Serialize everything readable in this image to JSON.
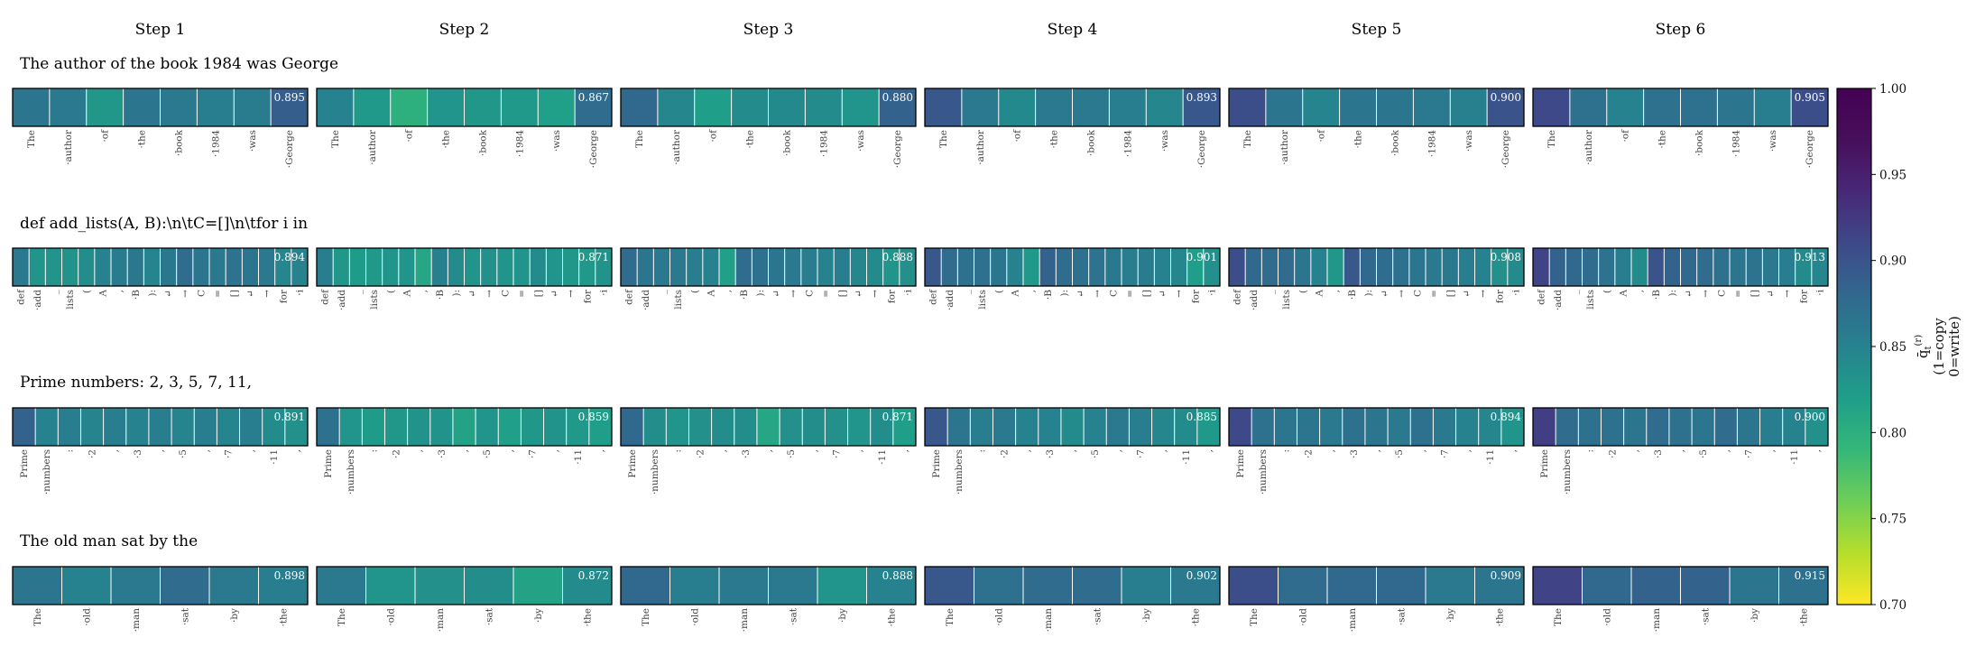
{
  "chart_data": {
    "type": "heatmap",
    "steps": [
      "Step 1",
      "Step 2",
      "Step 3",
      "Step 4",
      "Step 5",
      "Step 6"
    ],
    "colorbar": {
      "label_line1": "q̄",
      "label_sub": "t",
      "label_sup": "(r)",
      "label_line2": "(1=copy",
      "label_line3": "0=write)",
      "vmin": 0.7,
      "vmax": 1.0,
      "ticks": [
        "0.70",
        "0.75",
        "0.80",
        "0.85",
        "0.90",
        "0.95",
        "1.00"
      ],
      "colormap": "viridis_r"
    },
    "prompts": [
      {
        "title": "The author of the book 1984 was George",
        "tokens": [
          "The",
          "·author",
          "·of",
          "·the",
          "·book",
          "·1984",
          "·was",
          "·George"
        ],
        "labels": [
          "0.895",
          "0.867",
          "0.880",
          "0.893",
          "0.900",
          "0.905"
        ],
        "values": [
          [
            0.895,
            0.89,
            0.858,
            0.895,
            0.89,
            0.885,
            0.888,
            0.92
          ],
          [
            0.88,
            0.855,
            0.83,
            0.86,
            0.858,
            0.855,
            0.848,
            0.905
          ],
          [
            0.91,
            0.875,
            0.85,
            0.87,
            0.872,
            0.87,
            0.86,
            0.915
          ],
          [
            0.925,
            0.89,
            0.872,
            0.89,
            0.89,
            0.885,
            0.875,
            0.925
          ],
          [
            0.935,
            0.895,
            0.878,
            0.895,
            0.895,
            0.89,
            0.882,
            0.93
          ],
          [
            0.94,
            0.9,
            0.88,
            0.9,
            0.9,
            0.895,
            0.885,
            0.935
          ]
        ]
      },
      {
        "title": "def add_lists(A, B):\\n\\tC=[]\\n\\tfor i in",
        "tokens": [
          "def",
          "·add",
          "_",
          "lists",
          "(",
          "A",
          ",",
          "·B",
          "):",
          "↵",
          "→",
          "C",
          "=",
          "[]",
          "↵",
          "→",
          "for",
          "·i"
        ],
        "labels": [
          "0.894",
          "0.871",
          "0.888",
          "0.901",
          "0.908",
          "0.913"
        ],
        "values": [
          [
            0.89,
            0.86,
            0.86,
            0.862,
            0.868,
            0.88,
            0.888,
            0.893,
            0.878,
            0.892,
            0.905,
            0.895,
            0.89,
            0.898,
            0.895,
            0.89,
            0.875,
            0.88
          ],
          [
            0.885,
            0.858,
            0.852,
            0.855,
            0.86,
            0.86,
            0.84,
            0.882,
            0.87,
            0.86,
            0.865,
            0.86,
            0.86,
            0.87,
            0.86,
            0.858,
            0.855,
            0.862
          ],
          [
            0.905,
            0.895,
            0.89,
            0.89,
            0.885,
            0.88,
            0.848,
            0.905,
            0.9,
            0.895,
            0.89,
            0.885,
            0.88,
            0.885,
            0.875,
            0.87,
            0.86,
            0.865
          ],
          [
            0.925,
            0.905,
            0.9,
            0.9,
            0.895,
            0.88,
            0.855,
            0.915,
            0.905,
            0.9,
            0.898,
            0.892,
            0.885,
            0.888,
            0.88,
            0.875,
            0.85,
            0.865
          ],
          [
            0.935,
            0.91,
            0.905,
            0.905,
            0.895,
            0.88,
            0.858,
            0.925,
            0.91,
            0.905,
            0.9,
            0.895,
            0.89,
            0.892,
            0.885,
            0.88,
            0.865,
            0.87
          ],
          [
            0.945,
            0.915,
            0.91,
            0.905,
            0.898,
            0.885,
            0.87,
            0.93,
            0.915,
            0.91,
            0.905,
            0.9,
            0.895,
            0.898,
            0.89,
            0.885,
            0.87,
            0.875
          ]
        ]
      },
      {
        "title": "Prime numbers: 2, 3, 5, 7, 11,",
        "tokens": [
          "Prime",
          "·numbers",
          ":",
          "·2",
          ",",
          "·3",
          ",",
          "·5",
          ",",
          "·7",
          ",",
          "·11",
          ","
        ],
        "labels": [
          "0.891",
          "0.859",
          "0.871",
          "0.885",
          "0.894",
          "0.900"
        ],
        "values": [
          [
            0.915,
            0.88,
            0.885,
            0.878,
            0.885,
            0.88,
            0.885,
            0.878,
            0.885,
            0.878,
            0.885,
            0.87,
            0.865
          ],
          [
            0.9,
            0.86,
            0.852,
            0.858,
            0.862,
            0.862,
            0.845,
            0.86,
            0.848,
            0.858,
            0.862,
            0.855,
            0.85
          ],
          [
            0.91,
            0.868,
            0.86,
            0.865,
            0.868,
            0.868,
            0.84,
            0.865,
            0.868,
            0.865,
            0.86,
            0.868,
            0.85
          ],
          [
            0.925,
            0.895,
            0.885,
            0.89,
            0.88,
            0.88,
            0.87,
            0.88,
            0.89,
            0.885,
            0.875,
            0.87,
            0.855
          ],
          [
            0.94,
            0.9,
            0.895,
            0.895,
            0.89,
            0.9,
            0.895,
            0.89,
            0.9,
            0.89,
            0.88,
            0.875,
            0.86
          ],
          [
            0.95,
            0.905,
            0.9,
            0.9,
            0.895,
            0.905,
            0.9,
            0.895,
            0.905,
            0.895,
            0.885,
            0.88,
            0.865
          ]
        ]
      },
      {
        "title": "The old man sat by the",
        "tokens": [
          "The",
          "·old",
          "·man",
          "·sat",
          "·by",
          "·the"
        ],
        "labels": [
          "0.898",
          "0.872",
          "0.888",
          "0.902",
          "0.909",
          "0.915"
        ],
        "values": [
          [
            0.895,
            0.88,
            0.89,
            0.905,
            0.89,
            0.885
          ],
          [
            0.89,
            0.86,
            0.865,
            0.868,
            0.845,
            0.87
          ],
          [
            0.91,
            0.885,
            0.89,
            0.89,
            0.86,
            0.88
          ],
          [
            0.925,
            0.9,
            0.905,
            0.905,
            0.885,
            0.89
          ],
          [
            0.935,
            0.905,
            0.91,
            0.91,
            0.89,
            0.895
          ],
          [
            0.945,
            0.91,
            0.915,
            0.915,
            0.895,
            0.9
          ]
        ]
      }
    ]
  }
}
